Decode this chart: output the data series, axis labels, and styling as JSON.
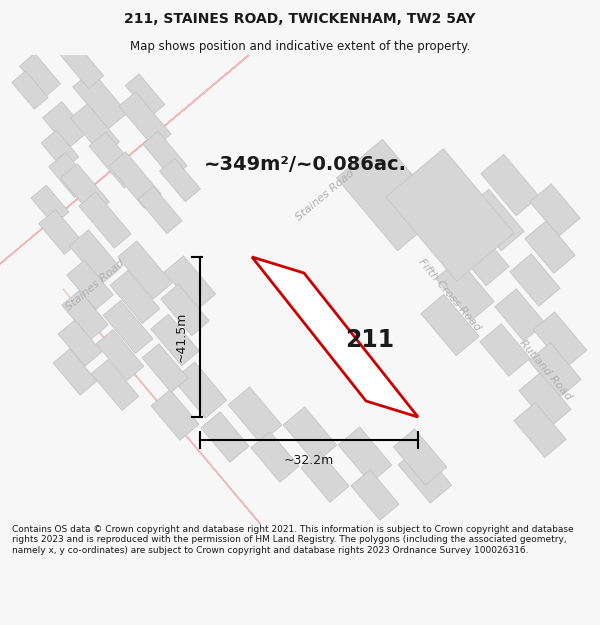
{
  "title": "211, STAINES ROAD, TWICKENHAM, TW2 5AY",
  "subtitle": "Map shows position and indicative extent of the property.",
  "area_text": "~349m²/~0.086ac.",
  "label_211": "211",
  "dim_width": "~32.2m",
  "dim_height": "~41.5m",
  "footer": "Contains OS data © Crown copyright and database right 2021. This information is subject to Crown copyright and database rights 2023 and is reproduced with the permission of HM Land Registry. The polygons (including the associated geometry, namely x, y co-ordinates) are subject to Crown copyright and database rights 2023 Ordnance Survey 100026316.",
  "bg_color": "#f7f7f7",
  "map_bg": "#f2f0f0",
  "line_color": "#f0b8b8",
  "building_color": "#d6d6d6",
  "building_edge": "#c0c0c0",
  "plot_color": "#ffffff",
  "plot_edge": "#cc0000",
  "text_color": "#1a1a1a",
  "road_label_color": "#b0b0b0",
  "road_edge_color": "#c8c8c8",
  "fig_width": 6.0,
  "fig_height": 6.25,
  "title_fs": 10,
  "subtitle_fs": 8.5,
  "area_fs": 14,
  "label_fs": 17,
  "dim_fs": 9,
  "road_label_fs": 8,
  "footer_fs": 6.5
}
